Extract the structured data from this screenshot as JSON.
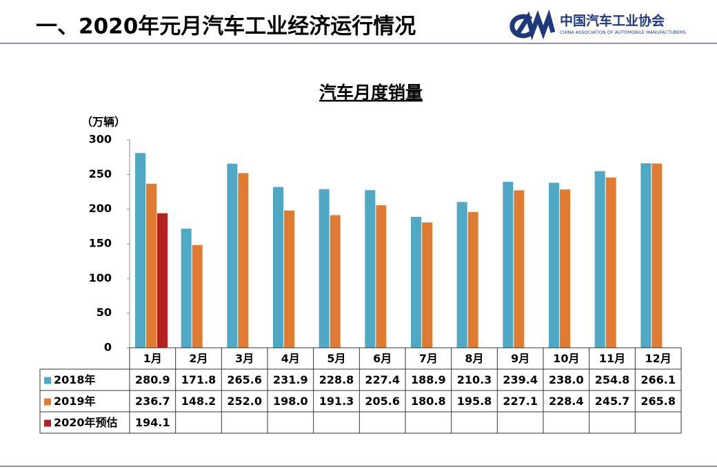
{
  "header": {
    "title": "一、2020年元月汽车工业经济运行情况",
    "org_name": "中国汽车工业协会",
    "org_name_en": "CHINA ASSOCIATION OF AUTOMOBILE MANUFACTURERS"
  },
  "chart_data": {
    "type": "bar",
    "title": "汽车月度销量",
    "y_label": "（万辆）",
    "categories": [
      "1月",
      "2月",
      "3月",
      "4月",
      "5月",
      "6月",
      "7月",
      "8月",
      "9月",
      "10月",
      "11月",
      "12月"
    ],
    "series": [
      {
        "name": "2018年",
        "color": "#4fa8c4",
        "values": [
          280.9,
          171.8,
          265.6,
          231.9,
          228.8,
          227.4,
          188.9,
          210.3,
          239.4,
          238.0,
          254.8,
          266.1
        ],
        "value_labels": [
          "280.9",
          "171.8",
          "265.6",
          "231.9",
          "228.8",
          "227.4",
          "188.9",
          "210.3",
          "239.4",
          "238.0",
          "254.8",
          "266.1"
        ]
      },
      {
        "name": "2019年",
        "color": "#e07b33",
        "values": [
          236.7,
          148.2,
          252.0,
          198.0,
          191.3,
          205.6,
          180.8,
          195.8,
          227.1,
          228.4,
          245.7,
          265.8
        ],
        "value_labels": [
          "236.7",
          "148.2",
          "252.0",
          "198.0",
          "191.3",
          "205.6",
          "180.8",
          "195.8",
          "227.1",
          "228.4",
          "245.7",
          "265.8"
        ]
      },
      {
        "name": "2020年预估",
        "color": "#b22222",
        "values": [
          194.1,
          null,
          null,
          null,
          null,
          null,
          null,
          null,
          null,
          null,
          null,
          null
        ],
        "value_labels": [
          "194.1",
          null,
          null,
          null,
          null,
          null,
          null,
          null,
          null,
          null,
          null,
          null
        ]
      }
    ],
    "ylim": [
      0,
      300
    ],
    "yticks": [
      0,
      50,
      100,
      150,
      200,
      250,
      300
    ],
    "grid": false,
    "legend": "table"
  }
}
